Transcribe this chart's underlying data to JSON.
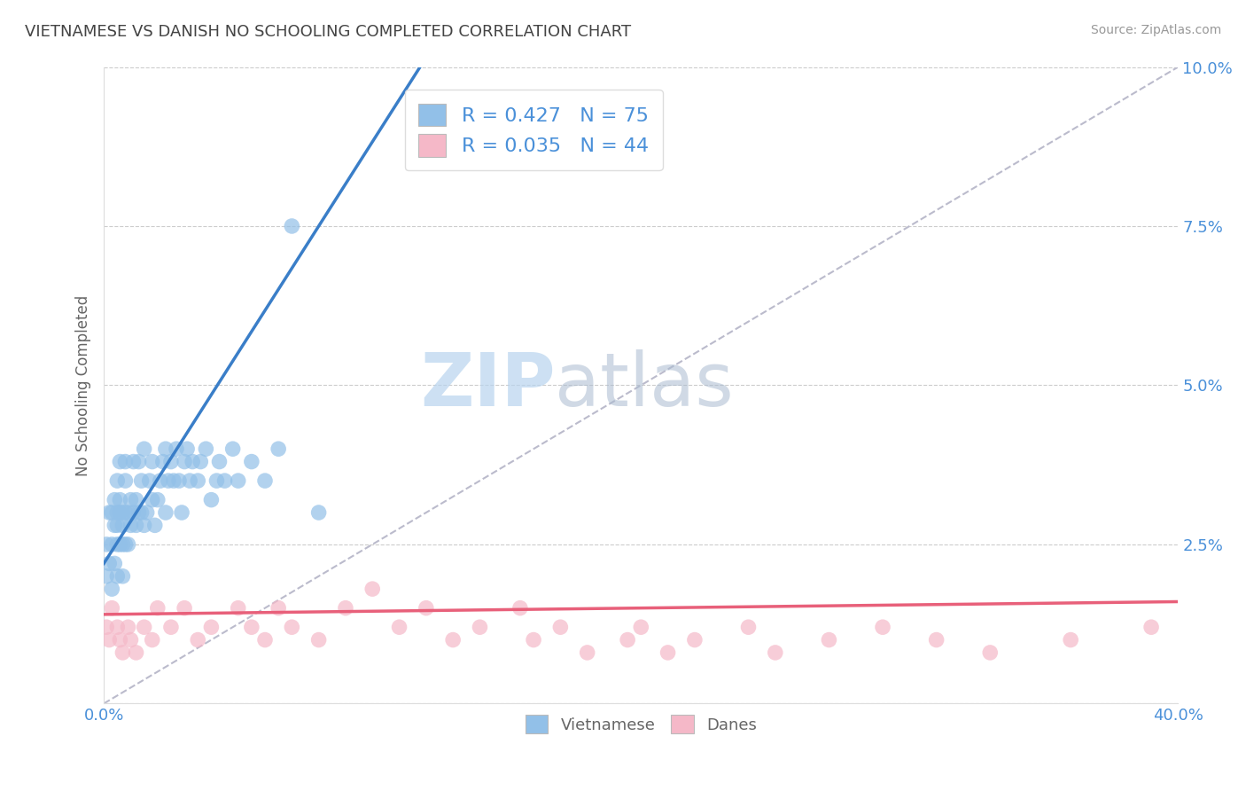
{
  "title": "VIETNAMESE VS DANISH NO SCHOOLING COMPLETED CORRELATION CHART",
  "source": "Source: ZipAtlas.com",
  "ylabel": "No Schooling Completed",
  "xlim": [
    0.0,
    0.4
  ],
  "ylim": [
    0.0,
    0.1
  ],
  "xticks": [
    0.0,
    0.1,
    0.2,
    0.3,
    0.4
  ],
  "xtick_labels": [
    "0.0%",
    "",
    "",
    "",
    "40.0%"
  ],
  "yticks": [
    0.0,
    0.025,
    0.05,
    0.075,
    0.1
  ],
  "ytick_labels": [
    "",
    "2.5%",
    "5.0%",
    "7.5%",
    "10.0%"
  ],
  "viet_color": "#92C0E8",
  "dane_color": "#F5B8C8",
  "viet_line_color": "#3A7EC8",
  "dane_line_color": "#E8607A",
  "ref_line_color": "#BBBBCC",
  "R_viet": 0.427,
  "N_viet": 75,
  "R_dane": 0.035,
  "N_dane": 44,
  "viet_x": [
    0.001,
    0.001,
    0.002,
    0.002,
    0.003,
    0.003,
    0.003,
    0.004,
    0.004,
    0.004,
    0.005,
    0.005,
    0.005,
    0.005,
    0.005,
    0.006,
    0.006,
    0.006,
    0.006,
    0.007,
    0.007,
    0.007,
    0.007,
    0.008,
    0.008,
    0.008,
    0.008,
    0.009,
    0.009,
    0.01,
    0.01,
    0.011,
    0.011,
    0.012,
    0.012,
    0.013,
    0.013,
    0.014,
    0.014,
    0.015,
    0.015,
    0.016,
    0.017,
    0.018,
    0.018,
    0.019,
    0.02,
    0.021,
    0.022,
    0.023,
    0.023,
    0.024,
    0.025,
    0.026,
    0.027,
    0.028,
    0.029,
    0.03,
    0.031,
    0.032,
    0.033,
    0.035,
    0.036,
    0.038,
    0.04,
    0.042,
    0.043,
    0.045,
    0.048,
    0.05,
    0.055,
    0.06,
    0.065,
    0.07,
    0.08
  ],
  "viet_y": [
    0.025,
    0.02,
    0.03,
    0.022,
    0.03,
    0.025,
    0.018,
    0.032,
    0.022,
    0.028,
    0.03,
    0.025,
    0.02,
    0.035,
    0.028,
    0.03,
    0.025,
    0.032,
    0.038,
    0.03,
    0.025,
    0.028,
    0.02,
    0.025,
    0.03,
    0.035,
    0.038,
    0.03,
    0.025,
    0.032,
    0.028,
    0.03,
    0.038,
    0.028,
    0.032,
    0.03,
    0.038,
    0.035,
    0.03,
    0.04,
    0.028,
    0.03,
    0.035,
    0.032,
    0.038,
    0.028,
    0.032,
    0.035,
    0.038,
    0.04,
    0.03,
    0.035,
    0.038,
    0.035,
    0.04,
    0.035,
    0.03,
    0.038,
    0.04,
    0.035,
    0.038,
    0.035,
    0.038,
    0.04,
    0.032,
    0.035,
    0.038,
    0.035,
    0.04,
    0.035,
    0.038,
    0.035,
    0.04,
    0.075,
    0.03
  ],
  "dane_x": [
    0.001,
    0.002,
    0.003,
    0.005,
    0.006,
    0.007,
    0.009,
    0.01,
    0.012,
    0.015,
    0.018,
    0.02,
    0.025,
    0.03,
    0.035,
    0.04,
    0.05,
    0.055,
    0.06,
    0.065,
    0.07,
    0.08,
    0.09,
    0.1,
    0.11,
    0.12,
    0.13,
    0.14,
    0.155,
    0.16,
    0.17,
    0.18,
    0.195,
    0.2,
    0.21,
    0.22,
    0.24,
    0.25,
    0.27,
    0.29,
    0.31,
    0.33,
    0.36,
    0.39
  ],
  "dane_y": [
    0.012,
    0.01,
    0.015,
    0.012,
    0.01,
    0.008,
    0.012,
    0.01,
    0.008,
    0.012,
    0.01,
    0.015,
    0.012,
    0.015,
    0.01,
    0.012,
    0.015,
    0.012,
    0.01,
    0.015,
    0.012,
    0.01,
    0.015,
    0.018,
    0.012,
    0.015,
    0.01,
    0.012,
    0.015,
    0.01,
    0.012,
    0.008,
    0.01,
    0.012,
    0.008,
    0.01,
    0.012,
    0.008,
    0.01,
    0.012,
    0.01,
    0.008,
    0.01,
    0.012
  ],
  "watermark_zip": "ZIP",
  "watermark_atlas": "atlas",
  "background_color": "#FFFFFF",
  "grid_color": "#CCCCCC",
  "title_color": "#444444",
  "axis_label_color": "#666666",
  "tick_color": "#4A90D9",
  "legend_R_color": "#4A90D9"
}
